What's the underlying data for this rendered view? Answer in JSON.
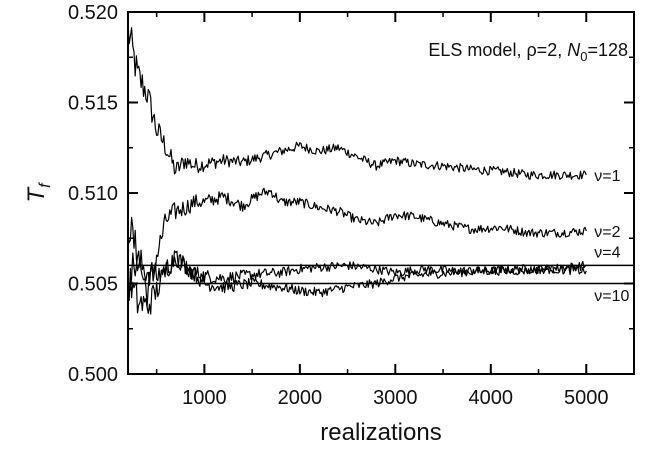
{
  "chart_data": {
    "type": "line",
    "xlabel": "realizations",
    "ylabel": {
      "main": "T",
      "sub": "f"
    },
    "annotation": {
      "prefix": "ELS model, ρ=2, ",
      "n_main": "N",
      "n_sub": "0",
      "suffix": "=128"
    },
    "xlim": [
      200,
      5500
    ],
    "ylim": [
      0.5,
      0.52
    ],
    "x_ticks": [
      1000,
      2000,
      3000,
      4000,
      5000
    ],
    "x_tick_labels": [
      "1000",
      "2000",
      "3000",
      "4000",
      "5000"
    ],
    "y_ticks": [
      0.5,
      0.505,
      0.51,
      0.515,
      0.52
    ],
    "y_tick_labels": [
      "0.500",
      "0.505",
      "0.510",
      "0.515",
      "0.520"
    ],
    "grid": false,
    "series": [
      {
        "name": "ν=1",
        "x": [
          200,
          300,
          400,
          500,
          600,
          700,
          800,
          900,
          1000,
          1200,
          1400,
          1600,
          1800,
          2000,
          2200,
          2400,
          2600,
          2800,
          3000,
          3200,
          3500,
          3800,
          4100,
          4400,
          4700,
          5000
        ],
        "y": [
          0.519,
          0.5165,
          0.5155,
          0.5135,
          0.5125,
          0.5112,
          0.5118,
          0.5115,
          0.5116,
          0.5118,
          0.5117,
          0.512,
          0.5123,
          0.5126,
          0.5123,
          0.5125,
          0.512,
          0.5115,
          0.5118,
          0.5116,
          0.5115,
          0.5113,
          0.5112,
          0.511,
          0.511,
          0.511
        ]
      },
      {
        "name": "ν=2",
        "x": [
          200,
          300,
          400,
          500,
          600,
          700,
          800,
          900,
          1000,
          1200,
          1400,
          1600,
          1700,
          1800,
          2000,
          2200,
          2400,
          2600,
          2800,
          3000,
          3200,
          3500,
          3800,
          4100,
          4400,
          4700,
          5000
        ],
        "y": [
          0.5085,
          0.5065,
          0.5045,
          0.5065,
          0.5085,
          0.509,
          0.5092,
          0.5095,
          0.5095,
          0.5098,
          0.5093,
          0.51,
          0.5101,
          0.5095,
          0.5095,
          0.5092,
          0.509,
          0.5085,
          0.5083,
          0.5088,
          0.5087,
          0.5083,
          0.508,
          0.5081,
          0.5078,
          0.5078,
          0.5079
        ]
      },
      {
        "name": "ν=4",
        "x": [
          200,
          300,
          400,
          500,
          600,
          700,
          800,
          1000,
          1200,
          1500,
          1800,
          2000,
          2200,
          2500,
          2800,
          3000,
          3300,
          3600,
          4000,
          4300,
          4600,
          5000
        ],
        "y": [
          0.5055,
          0.5062,
          0.5057,
          0.5054,
          0.5058,
          0.5064,
          0.5058,
          0.5054,
          0.5053,
          0.5055,
          0.5056,
          0.5058,
          0.5059,
          0.506,
          0.5058,
          0.5056,
          0.5058,
          0.5057,
          0.5057,
          0.5058,
          0.5058,
          0.506
        ]
      },
      {
        "name": "ν=10",
        "x": [
          200,
          300,
          400,
          500,
          600,
          700,
          800,
          1000,
          1200,
          1500,
          1800,
          2000,
          2200,
          2500,
          2800,
          3000,
          3300,
          3600,
          4000,
          4300,
          4600,
          5000
        ],
        "y": [
          0.5052,
          0.504,
          0.5037,
          0.5046,
          0.5058,
          0.5065,
          0.506,
          0.505,
          0.5048,
          0.505,
          0.5048,
          0.5046,
          0.5045,
          0.5048,
          0.505,
          0.5053,
          0.5055,
          0.5056,
          0.5057,
          0.5057,
          0.5058,
          0.5057
        ]
      }
    ],
    "reference_lines": [
      0.506,
      0.505
    ]
  }
}
